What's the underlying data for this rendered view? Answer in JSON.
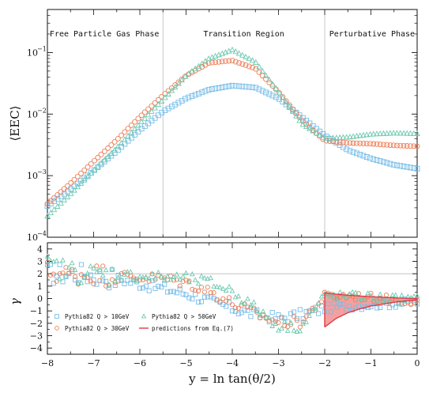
{
  "chart_data": [
    {
      "type": "scatter",
      "panel": "upper",
      "yscale": "log",
      "ylim": [
        0.0001,
        0.5
      ],
      "xlim": [
        -8,
        0
      ],
      "ylabel": "⟨EEC⟩",
      "y_ticks": [
        {
          "value": 0.0001,
          "base": "10",
          "exp": "−4"
        },
        {
          "value": 0.001,
          "base": "10",
          "exp": "−3"
        },
        {
          "value": 0.01,
          "base": "10",
          "exp": "−2"
        },
        {
          "value": 0.1,
          "base": "10",
          "exp": "−1"
        }
      ],
      "regions": [
        {
          "label": "Free Particle Gas Phase",
          "x_text": -7.95,
          "anchor": "start"
        },
        {
          "label": "Transition Region",
          "x_text": -3.75,
          "anchor": "middle"
        },
        {
          "label": "Perturbative Phase",
          "x_text": -0.05,
          "anchor": "end"
        }
      ],
      "boundaries": [
        -5.5,
        -2.0
      ],
      "series": [
        {
          "name": "Pythia82  Q > 10GeV",
          "color": "#77bde8",
          "marker": "square",
          "x": [
            -8.0,
            -7.5,
            -7.0,
            -6.5,
            -6.0,
            -5.5,
            -5.0,
            -4.5,
            -4.0,
            -3.5,
            -3.0,
            -2.5,
            -2.0,
            -1.5,
            -1.0,
            -0.5,
            0.0
          ],
          "y": [
            0.00032,
            0.0006,
            0.0012,
            0.0025,
            0.0055,
            0.011,
            0.018,
            0.025,
            0.029,
            0.027,
            0.018,
            0.009,
            0.0045,
            0.0026,
            0.0019,
            0.0015,
            0.0013
          ]
        },
        {
          "name": "Pythia82  Q > 30GeV",
          "color": "#ee7d55",
          "marker": "circle",
          "x": [
            -8.0,
            -7.5,
            -7.0,
            -6.5,
            -6.0,
            -5.5,
            -5.0,
            -4.5,
            -4.0,
            -3.5,
            -3.0,
            -2.5,
            -2.0,
            -1.5,
            -1.0,
            -0.5,
            0.0
          ],
          "y": [
            0.00035,
            0.00075,
            0.0017,
            0.0038,
            0.009,
            0.02,
            0.042,
            0.068,
            0.074,
            0.055,
            0.023,
            0.008,
            0.0037,
            0.0034,
            0.0033,
            0.0031,
            0.003
          ]
        },
        {
          "name": "Pythia82  Q > 50GeV",
          "color": "#6cc9b0",
          "marker": "triangle",
          "x": [
            -8.0,
            -7.5,
            -7.0,
            -6.5,
            -6.0,
            -5.5,
            -5.0,
            -4.5,
            -4.0,
            -3.5,
            -3.0,
            -2.5,
            -2.0,
            -1.5,
            -1.0,
            -0.5,
            0.0
          ],
          "y": [
            0.00022,
            0.0005,
            0.0012,
            0.0028,
            0.007,
            0.017,
            0.042,
            0.08,
            0.11,
            0.07,
            0.023,
            0.007,
            0.004,
            0.0042,
            0.0047,
            0.0049,
            0.0048
          ]
        }
      ]
    },
    {
      "type": "scatter",
      "panel": "lower",
      "ylim": [
        -4.5,
        4.5
      ],
      "xlim": [
        -8,
        0
      ],
      "xlabel": "y = ln tan(θ/2)",
      "ylabel": "γ",
      "y_ticks": [
        -4,
        -3,
        -2,
        -1,
        0,
        1,
        2,
        3,
        4
      ],
      "x_ticks": [
        -8,
        -7,
        -6,
        -5,
        -4,
        -3,
        -2,
        -1,
        0
      ],
      "reference_line": 2,
      "series": [
        {
          "name": "Pythia82  Q > 10GeV",
          "color": "#77bde8",
          "marker": "square",
          "x": [
            -8.0,
            -7.5,
            -7.0,
            -6.5,
            -6.0,
            -5.5,
            -5.0,
            -4.5,
            -4.0,
            -3.5,
            -3.0,
            -2.5,
            -2.0,
            -1.5,
            -1.0,
            -0.5,
            0.0
          ],
          "y": [
            2.0,
            2.0,
            1.9,
            1.6,
            1.2,
            0.8,
            0.4,
            -0.2,
            -0.8,
            -1.3,
            -1.6,
            -1.3,
            -0.8,
            -0.6,
            -0.5,
            -0.4,
            -0.3
          ]
        },
        {
          "name": "Pythia82  Q > 30GeV",
          "color": "#ee7d55",
          "marker": "circle",
          "x": [
            -8.0,
            -7.5,
            -7.0,
            -6.5,
            -6.0,
            -5.5,
            -5.0,
            -4.5,
            -4.0,
            -3.5,
            -3.0,
            -2.5,
            -2.0,
            -1.5,
            -1.0,
            -0.5,
            0.0
          ],
          "y": [
            2.2,
            1.9,
            2.0,
            1.8,
            1.7,
            1.6,
            1.3,
            0.6,
            -0.4,
            -1.2,
            -1.9,
            -1.9,
            0.2,
            0.2,
            0.1,
            -0.1,
            -0.2
          ]
        },
        {
          "name": "Pythia82  Q > 50GeV",
          "color": "#6cc9b0",
          "marker": "triangle",
          "x": [
            -8.0,
            -7.5,
            -7.0,
            -6.5,
            -6.0,
            -5.5,
            -5.0,
            -4.5,
            -4.0,
            -3.5,
            -3.0,
            -2.5,
            -2.0,
            -1.5,
            -1.0,
            -0.5,
            0.0
          ],
          "y": [
            2.6,
            2.2,
            1.9,
            1.9,
            1.8,
            1.7,
            1.6,
            1.3,
            0.6,
            -0.8,
            -2.2,
            -2.3,
            0.2,
            0.2,
            0.1,
            0.0,
            -0.1
          ]
        }
      ],
      "prediction": {
        "name": "predictions  from  Eq.(7)",
        "color": "#e03a45",
        "band_fill": "#f08080",
        "x": [
          -2.0,
          -1.75,
          -1.5,
          -1.25,
          -1.0,
          -0.75,
          -0.5,
          -0.25,
          0.0
        ],
        "upper": [
          0.45,
          0.35,
          0.27,
          0.2,
          0.15,
          0.1,
          0.05,
          0.02,
          0.0
        ],
        "lower": [
          -2.3,
          -1.6,
          -1.15,
          -0.85,
          -0.6,
          -0.45,
          -0.3,
          -0.2,
          -0.1
        ]
      },
      "legend": [
        {
          "label": "Pythia82  Q > 10GeV",
          "color": "#77bde8",
          "marker": "square"
        },
        {
          "label": "Pythia82  Q > 50GeV",
          "color": "#6cc9b0",
          "marker": "triangle"
        },
        {
          "label": "Pythia82  Q > 30GeV",
          "color": "#ee7d55",
          "marker": "circle"
        },
        {
          "label": "predictions  from  Eq.(7)",
          "color": "#e03a45",
          "marker": "line"
        }
      ]
    }
  ]
}
